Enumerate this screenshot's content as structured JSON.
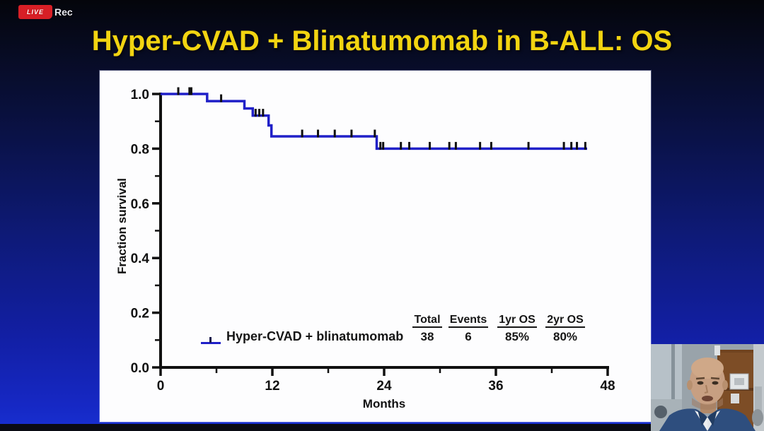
{
  "recorder": {
    "badge": "LIVE",
    "label": "Rec",
    "badge_color": "#d81f26"
  },
  "slide": {
    "title": "Hyper-CVAD + Blinatumomab in B-ALL: OS",
    "title_color": "#f2d411"
  },
  "chart_data": {
    "type": "line",
    "subtype": "kaplan-meier-step",
    "title": "",
    "xlabel": "Months",
    "ylabel": "Fraction survival",
    "xlim": [
      0,
      48
    ],
    "ylim": [
      0.0,
      1.0
    ],
    "grid": false,
    "x_major_ticks": [
      0,
      12,
      24,
      36,
      48
    ],
    "x_minor_ticks": [
      6,
      18,
      30,
      42
    ],
    "y_major_ticks": [
      0.0,
      0.2,
      0.4,
      0.6,
      0.8,
      1.0
    ],
    "y_minor_ticks": [
      0.1,
      0.3,
      0.5,
      0.7,
      0.9
    ],
    "series": [
      {
        "name": "Hyper-CVAD + blinatumomab",
        "color": "#2020c8",
        "step_points": [
          [
            0,
            1.0
          ],
          [
            5.0,
            1.0
          ],
          [
            5.0,
            0.974
          ],
          [
            9.0,
            0.974
          ],
          [
            9.0,
            0.947
          ],
          [
            9.9,
            0.947
          ],
          [
            9.9,
            0.921
          ],
          [
            11.6,
            0.921
          ],
          [
            11.6,
            0.885
          ],
          [
            11.9,
            0.885
          ],
          [
            11.9,
            0.845
          ],
          [
            23.2,
            0.845
          ],
          [
            23.2,
            0.8
          ],
          [
            45.8,
            0.8
          ]
        ],
        "censor_marks": [
          [
            1.9,
            1.0
          ],
          [
            3.1,
            1.0
          ],
          [
            3.3,
            1.0
          ],
          [
            6.5,
            0.974
          ],
          [
            10.2,
            0.921
          ],
          [
            10.6,
            0.921
          ],
          [
            11.0,
            0.921
          ],
          [
            15.2,
            0.845
          ],
          [
            16.9,
            0.845
          ],
          [
            18.7,
            0.845
          ],
          [
            20.5,
            0.845
          ],
          [
            23.0,
            0.845
          ],
          [
            23.6,
            0.8
          ],
          [
            23.9,
            0.8
          ],
          [
            25.8,
            0.8
          ],
          [
            26.7,
            0.8
          ],
          [
            28.9,
            0.8
          ],
          [
            31.0,
            0.8
          ],
          [
            31.7,
            0.8
          ],
          [
            34.3,
            0.8
          ],
          [
            35.5,
            0.8
          ],
          [
            39.5,
            0.8
          ],
          [
            43.3,
            0.8
          ],
          [
            44.1,
            0.8
          ],
          [
            44.7,
            0.8
          ],
          [
            45.6,
            0.8
          ]
        ]
      }
    ],
    "legend_table": {
      "headers": [
        "Total",
        "Events",
        "1yr OS",
        "2yr OS"
      ],
      "rows": [
        {
          "label": "Hyper-CVAD + blinatumomab",
          "values": [
            "38",
            "6",
            "85%",
            "80%"
          ]
        }
      ]
    },
    "legend_position": "lower-center"
  }
}
